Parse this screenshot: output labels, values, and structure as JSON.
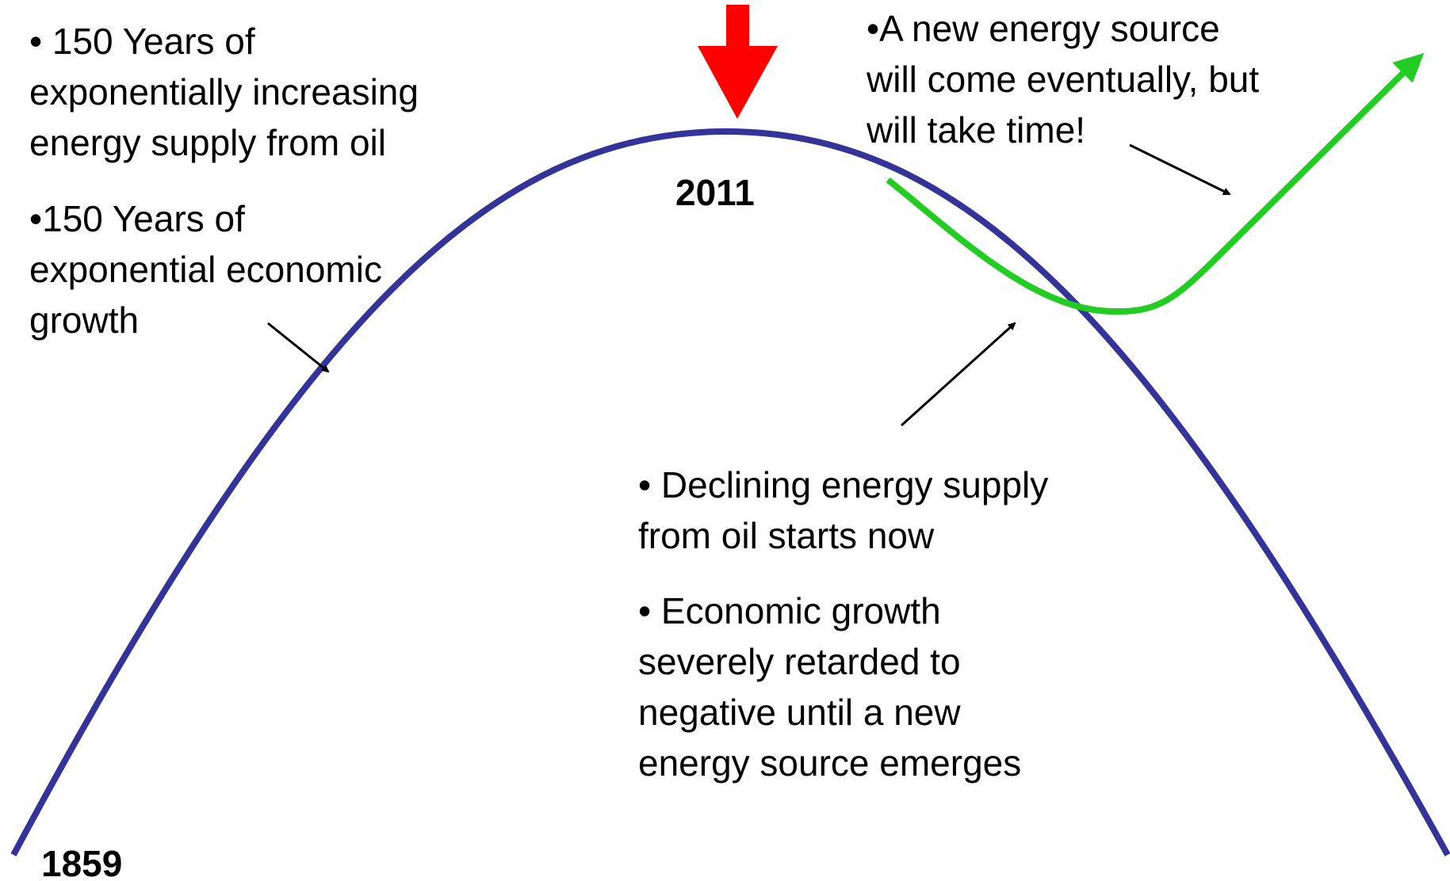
{
  "years": {
    "start": "1859",
    "peak": "2011"
  },
  "blocks": [
    {
      "lines": [
        "• 150 Years of",
        "exponentially increasing",
        "energy supply from oil"
      ]
    },
    {
      "lines": [
        "•150 Years of",
        "exponential economic",
        "growth"
      ]
    },
    {
      "lines": [
        "•A new energy source",
        "will come eventually, but",
        "will take time!"
      ]
    },
    {
      "lines": [
        "• Declining energy supply",
        "from oil starts now"
      ]
    },
    {
      "lines": [
        "• Economic growth",
        "severely retarded to",
        "negative until a new",
        "energy source emerges"
      ]
    }
  ]
}
